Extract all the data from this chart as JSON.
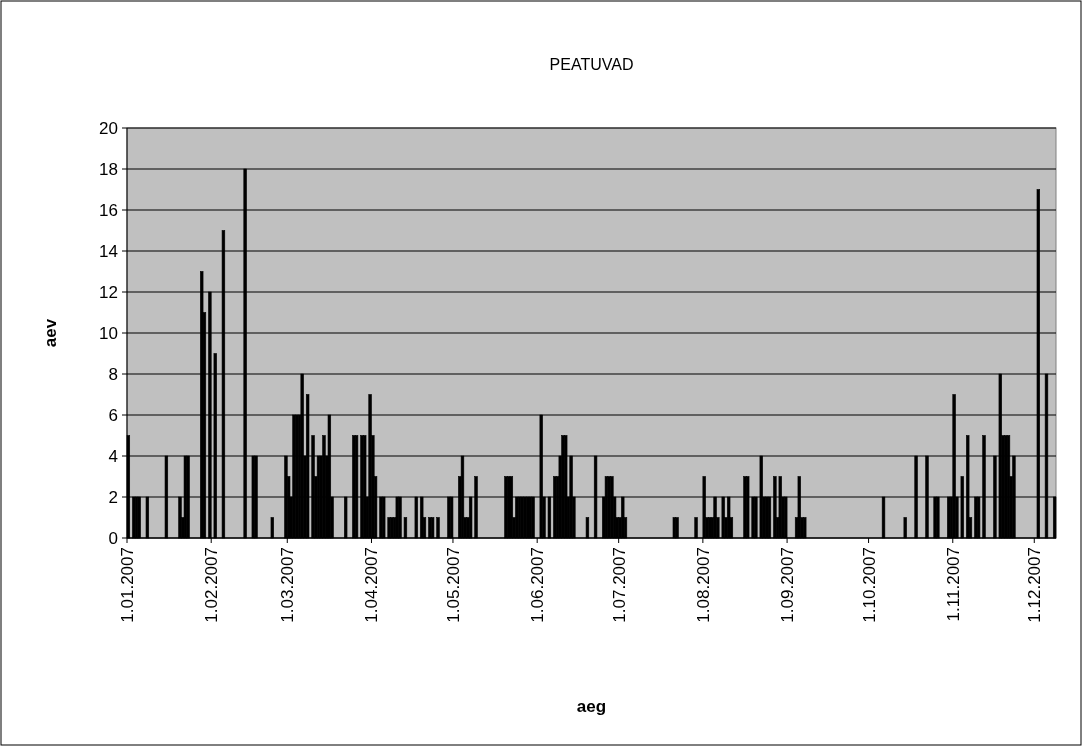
{
  "chart_data": {
    "type": "bar",
    "title": "PEATUVAD",
    "xlabel": "aeg",
    "ylabel": "aev",
    "color": "#000000",
    "grid": "y",
    "xlim": [
      "2007-01-01",
      "2007-12-09"
    ],
    "xticks": [
      {
        "value": "2007-01-01",
        "label": "1.01.2007"
      },
      {
        "value": "2007-02-01",
        "label": "1.02.2007"
      },
      {
        "value": "2007-03-01",
        "label": "1.03.2007"
      },
      {
        "value": "2007-04-01",
        "label": "1.04.2007"
      },
      {
        "value": "2007-05-01",
        "label": "1.05.2007"
      },
      {
        "value": "2007-06-01",
        "label": "1.06.2007"
      },
      {
        "value": "2007-07-01",
        "label": "1.07.2007"
      },
      {
        "value": "2007-08-01",
        "label": "1.08.2007"
      },
      {
        "value": "2007-09-01",
        "label": "1.09.2007"
      },
      {
        "value": "2007-10-01",
        "label": "1.10.2007"
      },
      {
        "value": "2007-11-01",
        "label": "1.11.2007"
      },
      {
        "value": "2007-12-01",
        "label": "1.12.2007"
      }
    ],
    "ylim": [
      0,
      20
    ],
    "yticks": [
      0,
      2,
      4,
      6,
      8,
      10,
      12,
      14,
      16,
      18,
      20
    ],
    "x": [
      "2007-01-01",
      "2007-01-03",
      "2007-01-04",
      "2007-01-05",
      "2007-01-08",
      "2007-01-15",
      "2007-01-20",
      "2007-01-21",
      "2007-01-22",
      "2007-01-23",
      "2007-01-28",
      "2007-01-29",
      "2007-01-31",
      "2007-02-02",
      "2007-02-05",
      "2007-02-13",
      "2007-02-16",
      "2007-02-17",
      "2007-02-23",
      "2007-02-28",
      "2007-03-01",
      "2007-03-02",
      "2007-03-03",
      "2007-03-04",
      "2007-03-05",
      "2007-03-06",
      "2007-03-07",
      "2007-03-08",
      "2007-03-10",
      "2007-03-11",
      "2007-03-12",
      "2007-03-13",
      "2007-03-14",
      "2007-03-15",
      "2007-03-16",
      "2007-03-17",
      "2007-03-22",
      "2007-03-25",
      "2007-03-26",
      "2007-03-28",
      "2007-03-29",
      "2007-03-30",
      "2007-03-31",
      "2007-04-01",
      "2007-04-02",
      "2007-04-04",
      "2007-04-05",
      "2007-04-07",
      "2007-04-08",
      "2007-04-09",
      "2007-04-10",
      "2007-04-11",
      "2007-04-13",
      "2007-04-17",
      "2007-04-19",
      "2007-04-20",
      "2007-04-22",
      "2007-04-23",
      "2007-04-25",
      "2007-04-29",
      "2007-04-30",
      "2007-05-03",
      "2007-05-04",
      "2007-05-05",
      "2007-05-06",
      "2007-05-07",
      "2007-05-09",
      "2007-05-20",
      "2007-05-21",
      "2007-05-22",
      "2007-05-23",
      "2007-05-24",
      "2007-05-25",
      "2007-05-26",
      "2007-05-27",
      "2007-05-28",
      "2007-05-29",
      "2007-05-30",
      "2007-06-02",
      "2007-06-03",
      "2007-06-05",
      "2007-06-07",
      "2007-06-08",
      "2007-06-09",
      "2007-06-10",
      "2007-06-11",
      "2007-06-12",
      "2007-06-13",
      "2007-06-14",
      "2007-06-19",
      "2007-06-22",
      "2007-06-25",
      "2007-06-26",
      "2007-06-27",
      "2007-06-28",
      "2007-06-29",
      "2007-06-30",
      "2007-07-01",
      "2007-07-02",
      "2007-07-03",
      "2007-07-21",
      "2007-07-22",
      "2007-07-29",
      "2007-08-01",
      "2007-08-02",
      "2007-08-03",
      "2007-08-04",
      "2007-08-05",
      "2007-08-06",
      "2007-08-08",
      "2007-08-09",
      "2007-08-10",
      "2007-08-11",
      "2007-08-16",
      "2007-08-17",
      "2007-08-19",
      "2007-08-20",
      "2007-08-22",
      "2007-08-23",
      "2007-08-24",
      "2007-08-25",
      "2007-08-27",
      "2007-08-28",
      "2007-08-29",
      "2007-08-30",
      "2007-08-31",
      "2007-09-04",
      "2007-09-05",
      "2007-09-06",
      "2007-09-07",
      "2007-10-06",
      "2007-10-14",
      "2007-10-18",
      "2007-10-22",
      "2007-10-25",
      "2007-10-26",
      "2007-10-30",
      "2007-10-31",
      "2007-11-01",
      "2007-11-02",
      "2007-11-04",
      "2007-11-06",
      "2007-11-07",
      "2007-11-09",
      "2007-11-10",
      "2007-11-12",
      "2007-11-16",
      "2007-11-18",
      "2007-11-19",
      "2007-11-20",
      "2007-11-21",
      "2007-11-22",
      "2007-11-23",
      "2007-12-02",
      "2007-12-05",
      "2007-12-08"
    ],
    "values": [
      5,
      2,
      2,
      2,
      2,
      4,
      2,
      1,
      4,
      4,
      13,
      11,
      12,
      9,
      15,
      18,
      4,
      4,
      1,
      4,
      3,
      2,
      6,
      6,
      6,
      8,
      4,
      7,
      5,
      3,
      4,
      4,
      5,
      4,
      6,
      2,
      2,
      5,
      5,
      5,
      5,
      2,
      7,
      5,
      3,
      2,
      2,
      1,
      1,
      1,
      2,
      2,
      1,
      2,
      2,
      1,
      1,
      1,
      1,
      2,
      2,
      3,
      4,
      1,
      1,
      2,
      3,
      3,
      3,
      3,
      1,
      2,
      2,
      2,
      2,
      2,
      2,
      2,
      6,
      2,
      2,
      3,
      3,
      4,
      5,
      5,
      2,
      4,
      2,
      1,
      4,
      2,
      3,
      3,
      3,
      2,
      1,
      1,
      2,
      1,
      1,
      1,
      1,
      3,
      1,
      1,
      1,
      2,
      1,
      2,
      1,
      2,
      1,
      3,
      3,
      2,
      2,
      4,
      2,
      2,
      2,
      3,
      1,
      3,
      2,
      2,
      1,
      3,
      1,
      1,
      2,
      1,
      4,
      4,
      2,
      2,
      2,
      2,
      7,
      2,
      3,
      5,
      1,
      2,
      2,
      5,
      4,
      8,
      5,
      5,
      5,
      3,
      4,
      17,
      8,
      2
    ]
  }
}
